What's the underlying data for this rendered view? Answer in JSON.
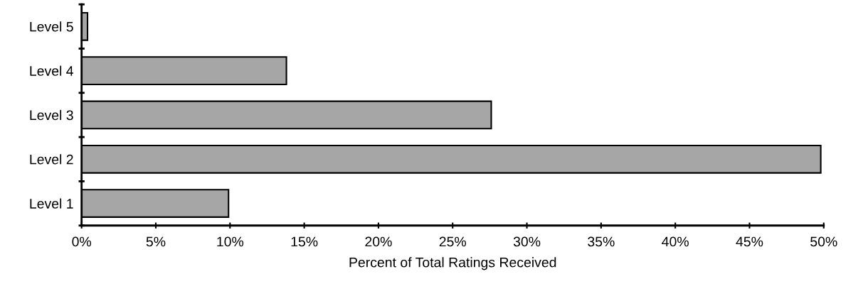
{
  "chart_data": {
    "type": "bar",
    "orientation": "horizontal",
    "xlabel": "Percent of Total Ratings Received",
    "categories": [
      "Level 5",
      "Level 4",
      "Level 3",
      "Level 2",
      "Level 1"
    ],
    "values": [
      0.4,
      13.8,
      27.6,
      49.8,
      9.9
    ],
    "color": "#a6a6a6",
    "xlim": [
      0,
      50
    ],
    "xticks": [
      {
        "value": 0,
        "label": "0%"
      },
      {
        "value": 5,
        "label": "5%"
      },
      {
        "value": 10,
        "label": "10%"
      },
      {
        "value": 15,
        "label": "15%"
      },
      {
        "value": 20,
        "label": "20%"
      },
      {
        "value": 25,
        "label": "25%"
      },
      {
        "value": 30,
        "label": "30%"
      },
      {
        "value": 35,
        "label": "35%"
      },
      {
        "value": 40,
        "label": "40%"
      },
      {
        "value": 45,
        "label": "45%"
      },
      {
        "value": 50,
        "label": "50%"
      }
    ],
    "grid": false,
    "legend": false
  }
}
